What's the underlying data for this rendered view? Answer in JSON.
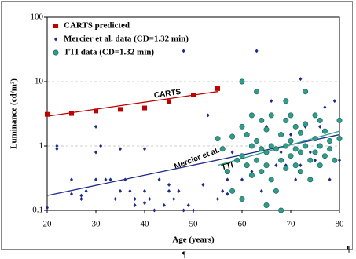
{
  "chart_data": {
    "type": "scatter",
    "xlabel": "Age (years)",
    "ylabel": "Luminance (cd/m²)",
    "xlim": [
      20,
      80
    ],
    "xticks": [
      20,
      30,
      40,
      50,
      60,
      70,
      80
    ],
    "ylim": [
      0.1,
      100
    ],
    "yticks": [
      0.1,
      1,
      10,
      100
    ],
    "ylog": true,
    "grid": true,
    "legend": "top-left",
    "series": [
      {
        "name": "CARTS predicted",
        "color": "#c00000",
        "marker": "square",
        "x": [
          20,
          25,
          30,
          35,
          40,
          45,
          50,
          55
        ],
        "values": [
          3.1,
          3.2,
          3.5,
          3.7,
          3.9,
          4.9,
          6.2,
          7.8
        ]
      },
      {
        "name": "Mercier et al. data (CD=1.32 min)",
        "color": "#1f2a8c",
        "marker": "diamond",
        "x": [
          20,
          22,
          22,
          25,
          25,
          27,
          27,
          28,
          30,
          30,
          30,
          31,
          32,
          33,
          34,
          35,
          35,
          36,
          37,
          38,
          38,
          40,
          40,
          40,
          41,
          42,
          43,
          44,
          45,
          45,
          46,
          47,
          48,
          48,
          49,
          50,
          52,
          53,
          55,
          56,
          57,
          57,
          58,
          60,
          62,
          63,
          64,
          65,
          66,
          67,
          68,
          69,
          70,
          71,
          72,
          72,
          73,
          74,
          75,
          76,
          77,
          78,
          79,
          80
        ],
        "values": [
          0.11,
          0.9,
          1.0,
          0.3,
          0.18,
          0.15,
          0.17,
          0.2,
          2.0,
          0.8,
          0.3,
          1.0,
          0.3,
          0.3,
          0.15,
          0.9,
          0.2,
          0.3,
          0.2,
          0.15,
          0.12,
          0.2,
          0.13,
          0.9,
          0.15,
          0.1,
          0.3,
          0.12,
          0.2,
          0.25,
          0.15,
          0.2,
          0.1,
          30,
          0.12,
          0.1,
          0.25,
          3.0,
          0.15,
          0.2,
          0.3,
          0.18,
          0.8,
          0.3,
          0.4,
          30,
          0.2,
          2.0,
          5,
          0.5,
          0.8,
          0.5,
          1.5,
          0.3,
          11,
          0.5,
          2,
          0.8,
          0.6,
          2,
          4,
          0.3,
          5,
          0.6
        ]
      },
      {
        "name": "TTI data (CD=1.32 min)",
        "color": "#2e9e8a",
        "marker": "circle",
        "x": [
          55,
          56,
          57,
          58,
          58,
          59,
          60,
          60,
          60,
          60,
          61,
          61,
          62,
          62,
          62,
          63,
          63,
          63,
          64,
          64,
          64,
          65,
          65,
          65,
          65,
          66,
          66,
          66,
          67,
          67,
          68,
          68,
          68,
          69,
          69,
          69,
          69,
          70,
          70,
          70,
          71,
          71,
          71,
          72,
          72,
          72,
          73,
          73,
          73,
          74,
          74,
          75,
          75,
          75,
          76,
          76,
          76,
          77,
          77,
          78,
          78,
          79,
          80,
          80
        ],
        "values": [
          1.3,
          0.9,
          0.4,
          1.4,
          0.2,
          0.6,
          10,
          2,
          0.7,
          0.15,
          1.5,
          0.5,
          3,
          1,
          0.35,
          7,
          1.2,
          0.6,
          2.5,
          0.9,
          0.4,
          1.8,
          0.8,
          0.5,
          0.12,
          3,
          1.0,
          0.3,
          0.9,
          0.2,
          1.5,
          0.6,
          0.1,
          5,
          2.5,
          1,
          0.45,
          3,
          1.2,
          0.7,
          2,
          0.9,
          0.5,
          1.6,
          0.8,
          0.4,
          7,
          2.2,
          1,
          0.6,
          0.3,
          3,
          1.3,
          0.8,
          2.5,
          1,
          0.5,
          1.7,
          0.7,
          1.2,
          0.9,
          0.6,
          2.5,
          1.3
        ]
      }
    ],
    "trendlines": [
      {
        "color": "#c00000",
        "x": [
          20,
          55
        ],
        "values": [
          2.9,
          7.0
        ]
      },
      {
        "color": "#1f2a8c",
        "x": [
          20,
          80
        ],
        "values": [
          0.17,
          1.5
        ]
      },
      {
        "color": "#2e9e8a",
        "x": [
          55,
          80
        ],
        "values": [
          0.5,
          1.7
        ]
      }
    ],
    "annotations": [
      "CARTS",
      "Mercier et al.",
      "TTI"
    ]
  },
  "page_marks": [
    "¶",
    "¶"
  ]
}
